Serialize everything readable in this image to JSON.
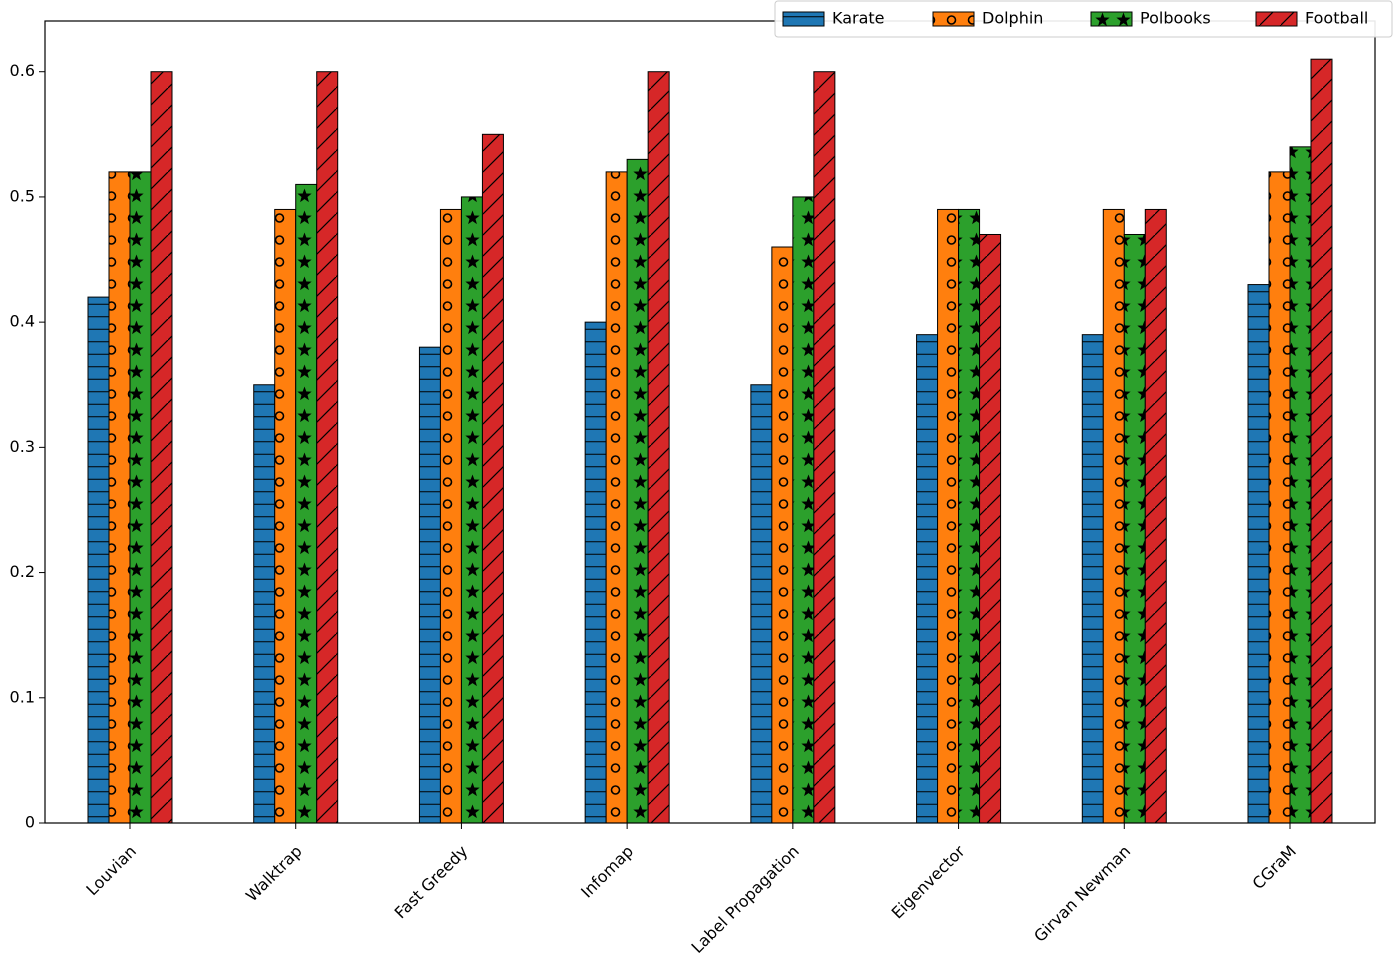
{
  "chart_data": {
    "type": "bar",
    "categories": [
      "Louvian",
      "Walktrap",
      "Fast Greedy",
      "Infomap",
      "Label Propagation",
      "Eigenvector",
      "Girvan Newman",
      "CGraM"
    ],
    "series": [
      {
        "name": "Karate",
        "color": "#1f77b4",
        "hatch": "-",
        "values": [
          0.42,
          0.35,
          0.38,
          0.4,
          0.35,
          0.39,
          0.39,
          0.43
        ]
      },
      {
        "name": "Dolphin",
        "color": "#ff7f0e",
        "hatch": "o",
        "values": [
          0.52,
          0.49,
          0.49,
          0.52,
          0.46,
          0.49,
          0.49,
          0.52
        ]
      },
      {
        "name": "Polbooks",
        "color": "#2ca02c",
        "hatch": "*",
        "values": [
          0.52,
          0.51,
          0.5,
          0.53,
          0.5,
          0.49,
          0.47,
          0.54
        ]
      },
      {
        "name": "Football",
        "color": "#d62728",
        "hatch": "/",
        "values": [
          0.6,
          0.6,
          0.55,
          0.6,
          0.6,
          0.47,
          0.49,
          0.61
        ]
      }
    ],
    "ylim": [
      0,
      0.6405
    ],
    "yticks": [
      0.0,
      0.1,
      0.2,
      0.3,
      0.4,
      0.5,
      0.6
    ],
    "legend": "upper right"
  }
}
